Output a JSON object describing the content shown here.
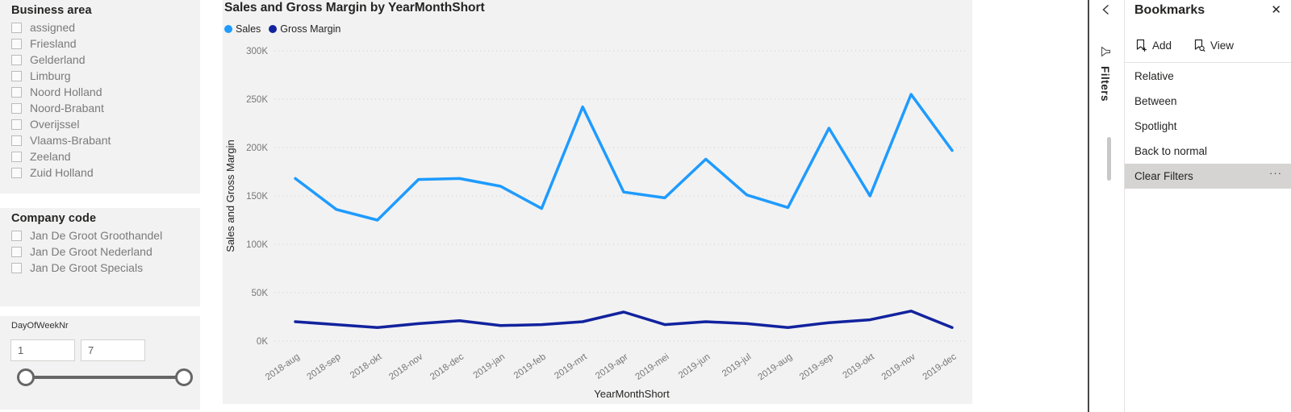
{
  "left_panel": {
    "business_area": {
      "title": "Business area",
      "items": [
        "assigned",
        "Friesland",
        "Gelderland",
        "Limburg",
        "Noord Holland",
        "Noord-Brabant",
        "Overijssel",
        "Vlaams-Brabant",
        "Zeeland",
        "Zuid Holland"
      ]
    },
    "company_code": {
      "title": "Company code",
      "items": [
        "Jan De Groot Groothandel",
        "Jan De Groot Nederland",
        "Jan De Groot Specials"
      ]
    },
    "day_of_week": {
      "title": "DayOfWeekNr",
      "min_value": "1",
      "max_value": "7"
    }
  },
  "chart_data": {
    "type": "line",
    "title": "Sales and Gross Margin by YearMonthShort",
    "xlabel": "YearMonthShort",
    "ylabel": "Sales and Gross Margin",
    "categories": [
      "2018-aug",
      "2018-sep",
      "2018-okt",
      "2018-nov",
      "2018-dec",
      "2019-jan",
      "2019-feb",
      "2019-mrt",
      "2019-apr",
      "2019-mei",
      "2019-jun",
      "2019-jul",
      "2019-aug",
      "2019-sep",
      "2019-okt",
      "2019-nov",
      "2019-dec"
    ],
    "series": [
      {
        "name": "Sales",
        "color": "#1E9BFF",
        "values": [
          168000,
          136000,
          125000,
          167000,
          168000,
          160000,
          137000,
          242000,
          154000,
          148000,
          188000,
          151000,
          138000,
          220000,
          150000,
          255000,
          197000
        ]
      },
      {
        "name": "Gross Margin",
        "color": "#12239E",
        "values": [
          20000,
          17000,
          14000,
          18000,
          21000,
          16000,
          17000,
          20000,
          30000,
          17000,
          20000,
          18000,
          14000,
          19000,
          22000,
          31000,
          14000
        ]
      }
    ],
    "y_ticks": [
      "300K",
      "250K",
      "200K",
      "150K",
      "100K",
      "50K",
      "0K"
    ],
    "ylim": [
      0,
      300000
    ],
    "grid": true,
    "legend_position": "top-left"
  },
  "filters_pane": {
    "label": "Filters",
    "collapse_icon": "chevron-left-icon",
    "funnel_icon": "funnel-icon"
  },
  "bookmarks_panel": {
    "title": "Bookmarks",
    "close_icon": "✕",
    "add_label": "Add",
    "view_label": "View",
    "more_icon": "···",
    "items": [
      {
        "label": "Relative",
        "selected": false
      },
      {
        "label": "Between",
        "selected": false
      },
      {
        "label": "Spotlight",
        "selected": false
      },
      {
        "label": "Back to normal",
        "selected": false
      },
      {
        "label": "Clear Filters",
        "selected": true
      }
    ]
  }
}
